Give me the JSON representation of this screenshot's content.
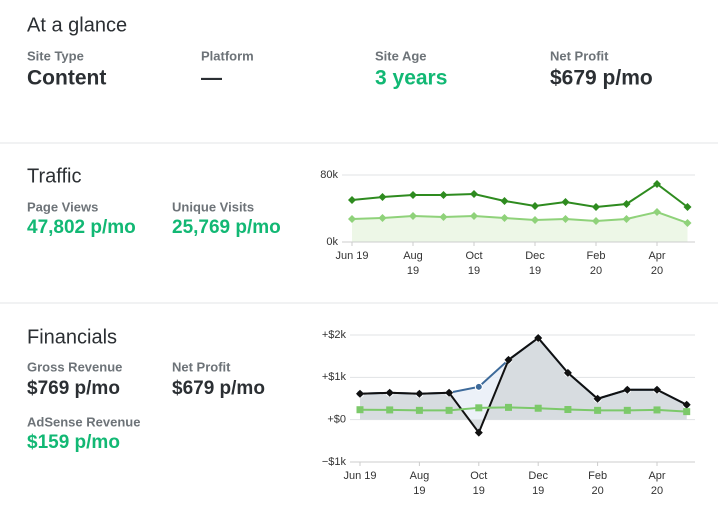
{
  "glance": {
    "title": "At a glance",
    "stats": [
      {
        "label": "Site Type",
        "value": "Content",
        "color": "#2b2f33"
      },
      {
        "label": "Platform",
        "value": "—",
        "color": "#2b2f33"
      },
      {
        "label": "Site Age",
        "value": "3 years",
        "color": "#12b874"
      },
      {
        "label": "Net Profit",
        "value": "$679 p/mo",
        "color": "#2b2f33"
      }
    ]
  },
  "traffic": {
    "title": "Traffic",
    "stats": [
      {
        "label": "Page Views",
        "value": "47,802 p/mo",
        "color": "#12b874"
      },
      {
        "label": "Unique Visits",
        "value": "25,769 p/mo",
        "color": "#12b874"
      }
    ],
    "chart": {
      "type": "line",
      "categories": [
        "Jun 19",
        null,
        "Aug 19",
        null,
        "Oct 19",
        null,
        "Dec 19",
        null,
        "Feb 20",
        null,
        "Apr 20",
        null
      ],
      "ylim": [
        0,
        80000
      ],
      "yticks": [
        {
          "value": 0,
          "label": "0k"
        },
        {
          "value": 80000,
          "label": "80k"
        }
      ],
      "grid": true,
      "series": [
        {
          "color": "#8fd27a",
          "marker": "diamond",
          "fill": "#eaf6e3",
          "values": [
            27500,
            28700,
            31000,
            29900,
            31000,
            28700,
            26300,
            27500,
            25100,
            27500,
            35800,
            22700
          ]
        },
        {
          "color": "#2e8b1f",
          "marker": "diamond",
          "values": [
            50100,
            53700,
            56100,
            56100,
            57300,
            49000,
            43000,
            47800,
            41800,
            45400,
            69300,
            41800
          ]
        }
      ]
    }
  },
  "financials": {
    "title": "Financials",
    "stats": [
      {
        "label": "Gross Revenue",
        "value": "$769 p/mo",
        "color": "#2b2f33"
      },
      {
        "label": "Net Profit",
        "value": "$679 p/mo",
        "color": "#2b2f33"
      },
      {
        "label": "AdSense Revenue",
        "value": "$159 p/mo",
        "color": "#12b874"
      }
    ],
    "chart": {
      "type": "line",
      "categories": [
        "Jun 19",
        null,
        "Aug 19",
        null,
        "Oct 19",
        null,
        "Dec 19",
        null,
        "Feb 20",
        null,
        "Apr 20",
        null
      ],
      "ylim": [
        -1000,
        2000
      ],
      "yticks": [
        {
          "value": -1000,
          "label": "−$1k"
        },
        {
          "value": 0,
          "label": "+$0"
        },
        {
          "value": 1000,
          "label": "+$1k"
        },
        {
          "value": 2000,
          "label": "+$2k"
        }
      ],
      "grid": true,
      "series": [
        {
          "color": "#3d6a9a",
          "marker": "circle",
          "fill": "#e9eef7",
          "values": [
            612,
            635,
            612,
            635,
            776,
            1412,
            1929,
            1106,
            494,
            706,
            706,
            353
          ]
        },
        {
          "color": "#111111",
          "marker": "diamond",
          "fill": "#d4d8dc",
          "values": [
            612,
            635,
            612,
            635,
            -306,
            1412,
            1929,
            1106,
            494,
            706,
            706,
            353
          ]
        },
        {
          "color": "#7cc96a",
          "marker": "square",
          "values": [
            235,
            230,
            220,
            220,
            280,
            290,
            270,
            240,
            220,
            220,
            230,
            190
          ]
        }
      ]
    }
  }
}
